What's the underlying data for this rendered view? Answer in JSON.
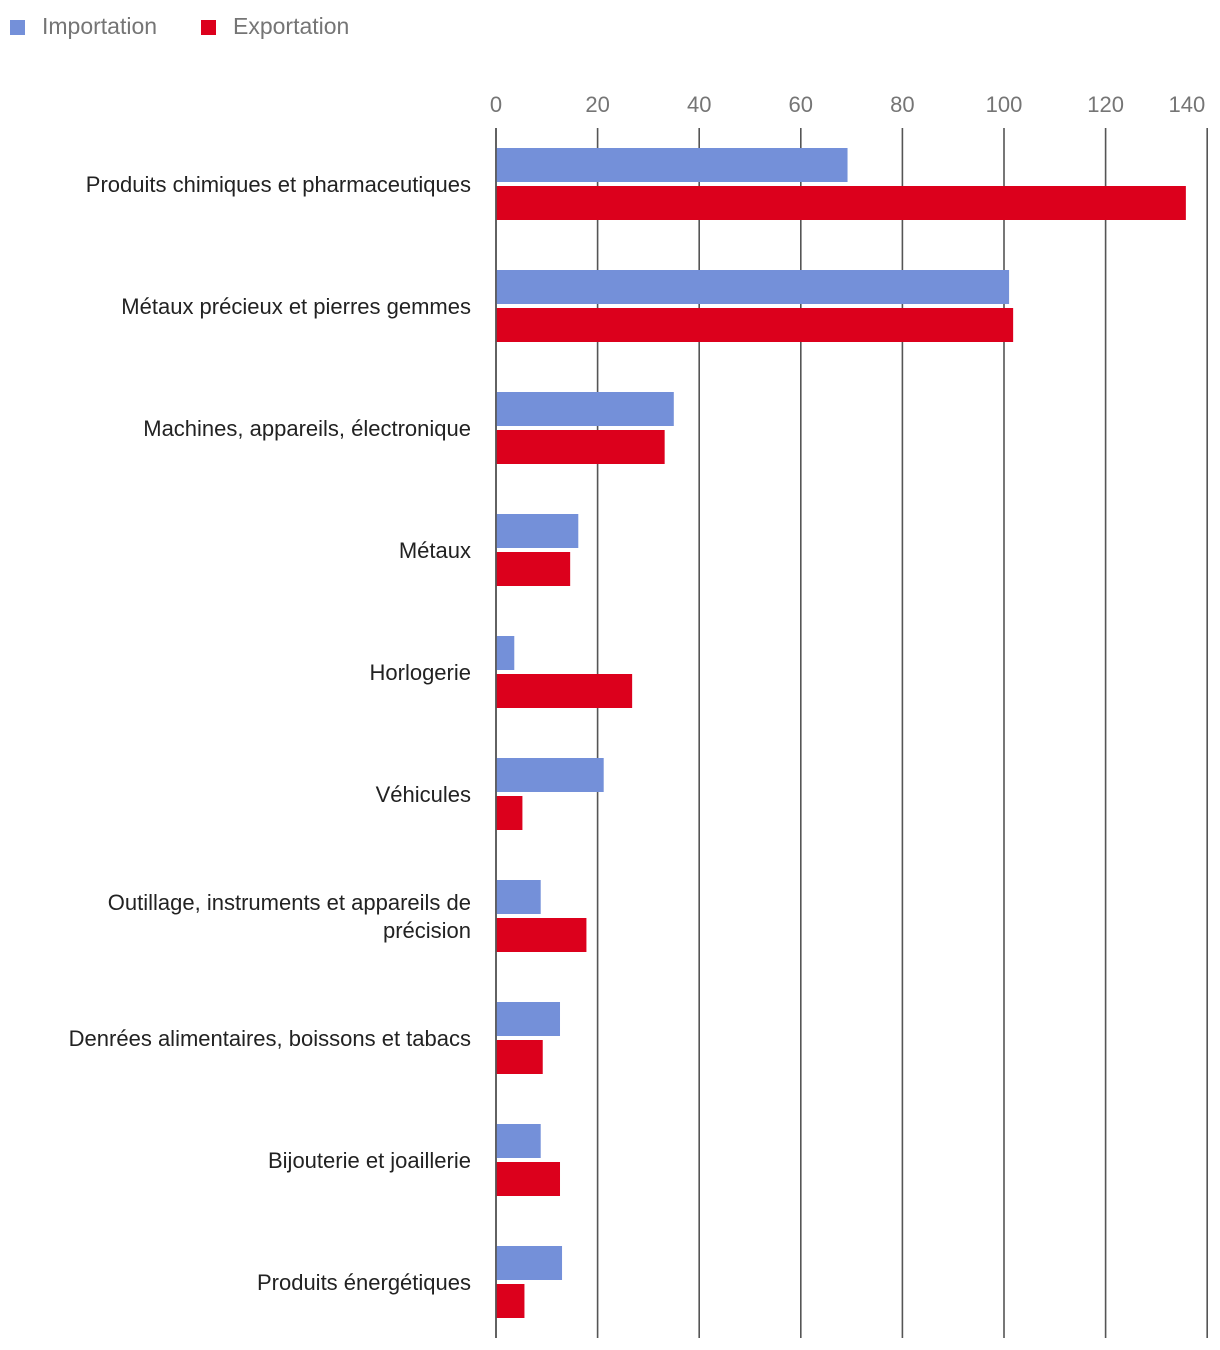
{
  "chart_data": {
    "type": "bar",
    "orientation": "horizontal",
    "title": "",
    "xlabel": "",
    "ylabel": "",
    "xlim": [
      0,
      140
    ],
    "x_ticks": [
      "0",
      "20",
      "40",
      "60",
      "80",
      "100",
      "120",
      "140"
    ],
    "grid": true,
    "legend_position": "top-left",
    "categories": [
      [
        "Produits chimiques et pharmaceutiques"
      ],
      [
        "Métaux précieux et pierres gemmes"
      ],
      [
        "Machines, appareils, électronique"
      ],
      [
        "Métaux"
      ],
      [
        "Horlogerie"
      ],
      [
        "Véhicules"
      ],
      [
        "Outillage, instruments et appareils de",
        "précision"
      ],
      [
        "Denrées alimentaires, boissons et tabacs"
      ],
      [
        "Bijouterie et joaillerie"
      ],
      [
        "Produits énergétiques"
      ]
    ],
    "series": [
      {
        "name": "Importation",
        "color": "#7490d9",
        "values": [
          69.2,
          101,
          35,
          16.2,
          3.6,
          21.2,
          8.8,
          12.6,
          8.8,
          13
        ]
      },
      {
        "name": "Exportation",
        "color": "#dc001c",
        "values": [
          135.8,
          101.8,
          33.2,
          14.6,
          26.8,
          5.2,
          17.8,
          9.2,
          12.6,
          5.6
        ]
      }
    ]
  }
}
